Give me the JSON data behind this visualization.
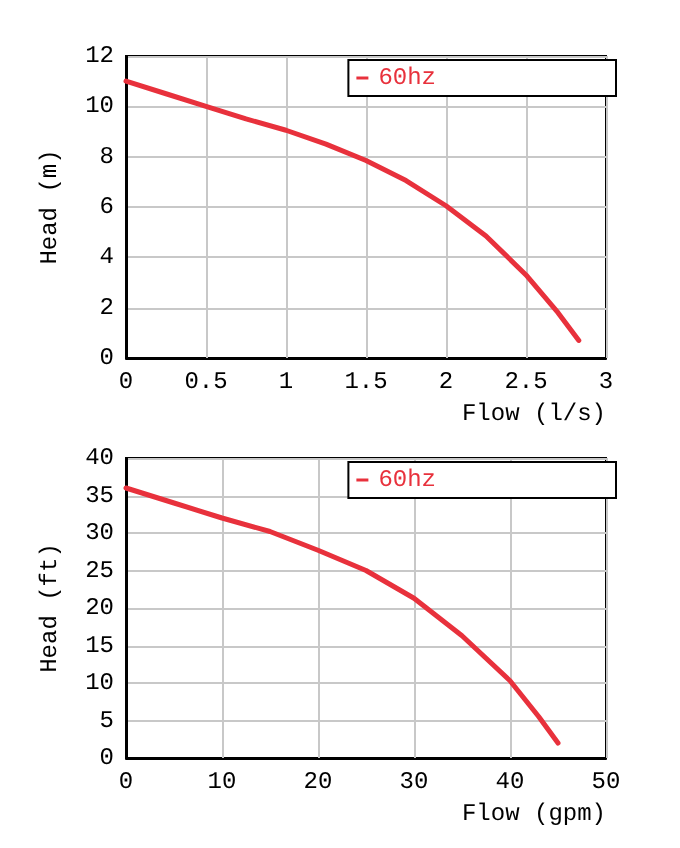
{
  "chart_data": [
    {
      "type": "line",
      "xlabel": "Flow (l/s)",
      "ylabel": "Head (m)",
      "xlim": [
        0,
        3
      ],
      "ylim": [
        0,
        12
      ],
      "xticks": [
        0,
        0.5,
        1,
        1.5,
        2,
        2.5,
        3
      ],
      "yticks": [
        0,
        2,
        4,
        6,
        8,
        10,
        12
      ],
      "grid": true,
      "legend": "top right",
      "marker": "none",
      "line_style": "solid",
      "series": [
        {
          "name": "60hz",
          "color": "#e8313c",
          "x": [
            0,
            0.25,
            0.5,
            0.75,
            1,
            1.25,
            1.5,
            1.75,
            2,
            2.25,
            2.5,
            2.7,
            2.83
          ],
          "values": [
            11,
            10.5,
            10,
            9.5,
            9.05,
            8.5,
            7.85,
            7.05,
            6.05,
            4.85,
            3.3,
            1.8,
            0.7
          ]
        }
      ]
    },
    {
      "type": "line",
      "xlabel": "Flow (gpm)",
      "ylabel": "Head (ft)",
      "xlim": [
        0,
        50
      ],
      "ylim": [
        0,
        40
      ],
      "xticks": [
        0,
        10,
        20,
        30,
        40,
        50
      ],
      "yticks": [
        0,
        5,
        10,
        15,
        20,
        25,
        30,
        35,
        40
      ],
      "grid": true,
      "legend": "top right",
      "marker": "none",
      "line_style": "solid",
      "series": [
        {
          "name": "60hz",
          "color": "#e8313c",
          "x": [
            0,
            5,
            10,
            15,
            20,
            25,
            30,
            35,
            40,
            43,
            45
          ],
          "values": [
            36,
            34,
            32,
            30.2,
            27.7,
            25,
            21.3,
            16.3,
            10.3,
            5.5,
            2
          ]
        }
      ]
    }
  ]
}
